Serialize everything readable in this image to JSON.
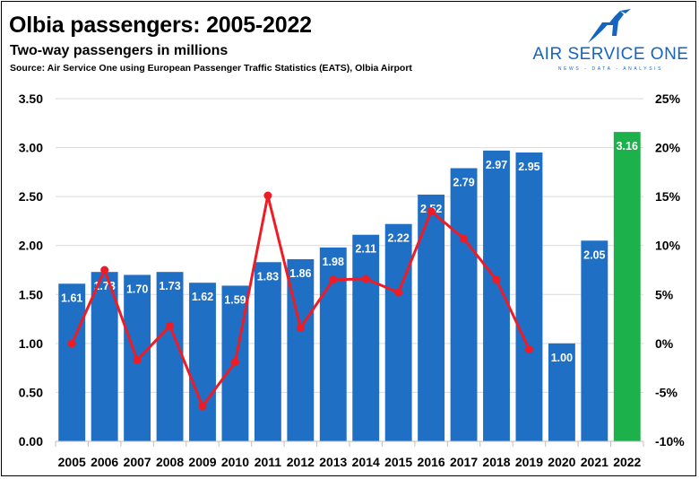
{
  "header": {
    "title": "Olbia passengers: 2005-2022",
    "subtitle": "Two-way passengers in millions",
    "source": "Source: Air Service One using European Passenger Traffic Statistics (EATS), Olbia Airport"
  },
  "logo": {
    "name": "AIR SERVICE ONE",
    "tagline": "NEWS - DATA - ANALYSIS",
    "color": "#1565c0"
  },
  "chart_data": {
    "type": "bar",
    "categories": [
      "2005",
      "2006",
      "2007",
      "2008",
      "2009",
      "2010",
      "2011",
      "2012",
      "2013",
      "2014",
      "2015",
      "2016",
      "2017",
      "2018",
      "2019",
      "2020",
      "2021",
      "2022"
    ],
    "series": [
      {
        "type": "bar",
        "axis": "left",
        "values": [
          1.61,
          1.73,
          1.7,
          1.73,
          1.62,
          1.59,
          1.83,
          1.86,
          1.98,
          2.11,
          2.22,
          2.52,
          2.79,
          2.97,
          2.95,
          1.0,
          2.05,
          3.16
        ],
        "labels": [
          "1.61",
          "1.73",
          "1.70",
          "1.73",
          "1.62",
          "1.59",
          "1.83",
          "1.86",
          "1.98",
          "2.11",
          "2.22",
          "2.52",
          "2.79",
          "2.97",
          "2.95",
          "1.00",
          "2.05",
          "3.16"
        ],
        "color": "#1f6fc5",
        "highlight_color": "#1db14b",
        "highlight_index": 17
      },
      {
        "type": "line",
        "axis": "right",
        "values": [
          0.0,
          7.5,
          -1.7,
          1.8,
          -6.4,
          -1.9,
          15.1,
          1.6,
          6.5,
          6.6,
          5.2,
          13.5,
          10.7,
          6.5,
          -0.6,
          null,
          null,
          null
        ],
        "color": "#ee1c25"
      }
    ],
    "y_left": {
      "ylim": [
        0,
        3.5
      ],
      "ticks": [
        "0.00",
        "0.50",
        "1.00",
        "1.50",
        "2.00",
        "2.50",
        "3.00",
        "3.50"
      ]
    },
    "y_right": {
      "ylim": [
        -10,
        25
      ],
      "ticks": [
        "-10%",
        "-5%",
        "0%",
        "5%",
        "10%",
        "15%",
        "20%",
        "25%"
      ]
    },
    "grid": true,
    "legend": "none"
  }
}
